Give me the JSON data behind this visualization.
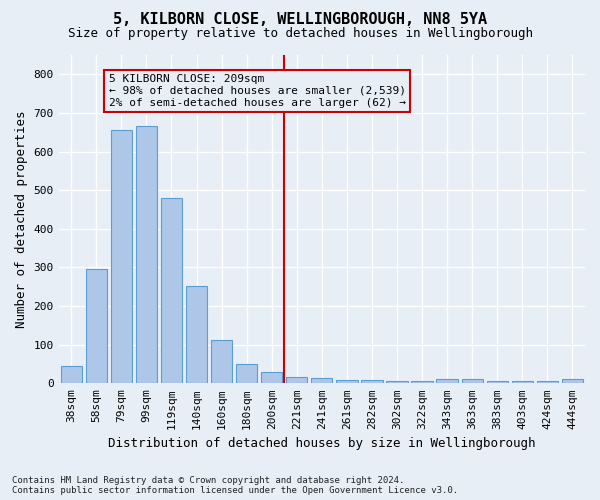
{
  "title": "5, KILBORN CLOSE, WELLINGBOROUGH, NN8 5YA",
  "subtitle": "Size of property relative to detached houses in Wellingborough",
  "xlabel": "Distribution of detached houses by size in Wellingborough",
  "ylabel": "Number of detached properties",
  "footnote": "Contains HM Land Registry data © Crown copyright and database right 2024.\nContains public sector information licensed under the Open Government Licence v3.0.",
  "categories": [
    "38sqm",
    "58sqm",
    "79sqm",
    "99sqm",
    "119sqm",
    "140sqm",
    "160sqm",
    "180sqm",
    "200sqm",
    "221sqm",
    "241sqm",
    "261sqm",
    "282sqm",
    "302sqm",
    "322sqm",
    "343sqm",
    "363sqm",
    "383sqm",
    "403sqm",
    "424sqm",
    "444sqm"
  ],
  "values": [
    45,
    295,
    655,
    665,
    480,
    252,
    113,
    50,
    28,
    17,
    15,
    8,
    8,
    6,
    6,
    10,
    10,
    6,
    6,
    6,
    10
  ],
  "bar_color": "#aec6e8",
  "bar_edge_color": "#5a9fd4",
  "background_color": "#e8eef6",
  "grid_color": "#ffffff",
  "annotation_box_line1": "5 KILBORN CLOSE: 209sqm",
  "annotation_box_line2": "← 98% of detached houses are smaller (2,539)",
  "annotation_box_line3": "2% of semi-detached houses are larger (62) →",
  "annotation_box_color": "#cc0000",
  "vline_x": 8.5,
  "vline_color": "#cc0000",
  "ylim": [
    0,
    850
  ],
  "yticks": [
    0,
    100,
    200,
    300,
    400,
    500,
    600,
    700,
    800
  ],
  "title_fontsize": 11,
  "subtitle_fontsize": 9,
  "ylabel_fontsize": 9,
  "xlabel_fontsize": 9,
  "tick_fontsize": 8,
  "annot_fontsize": 8
}
